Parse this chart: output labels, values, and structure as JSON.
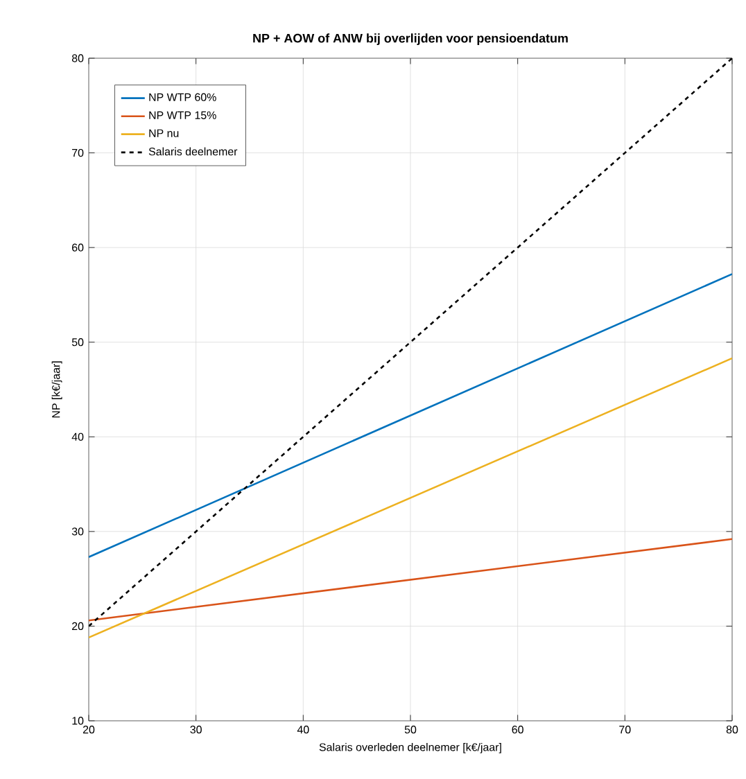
{
  "chart_data": {
    "type": "line",
    "title": "NP + AOW of ANW bij overlijden voor pensioendatum",
    "xlabel": "Salaris overleden deelnemer [k€/jaar]",
    "ylabel": "NP [k€/jaar]",
    "x": [
      20,
      80
    ],
    "series": [
      {
        "name": "NP WTP 60%",
        "color": "#0072bd",
        "values": [
          27.3,
          57.2
        ]
      },
      {
        "name": "NP WTP 15%",
        "color": "#d95319",
        "values": [
          20.6,
          29.2
        ]
      },
      {
        "name": "NP nu",
        "color": "#edb120",
        "values": [
          18.8,
          48.3
        ]
      },
      {
        "name": "Salaris deelnemer",
        "color": "#000000",
        "values": [
          20,
          80
        ],
        "line_style": "dashed"
      }
    ],
    "xlim": [
      20,
      80
    ],
    "ylim": [
      10,
      80
    ],
    "xticks": [
      20,
      30,
      40,
      50,
      60,
      70,
      80
    ],
    "yticks": [
      10,
      20,
      30,
      40,
      50,
      60,
      70,
      80
    ],
    "grid": true,
    "legend": "top left",
    "marker": "none",
    "line_style": "solid"
  }
}
